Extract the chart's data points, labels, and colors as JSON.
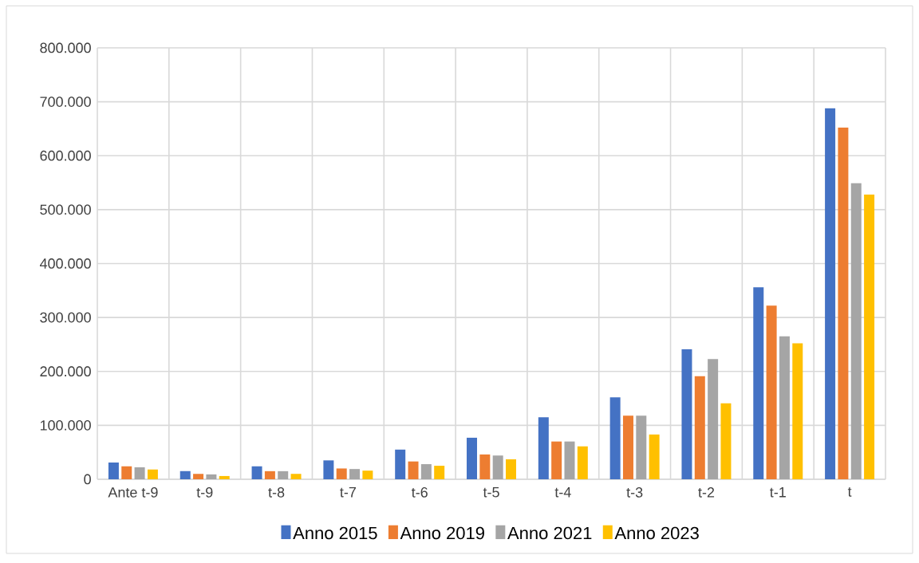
{
  "chart_data": {
    "type": "bar",
    "categories": [
      "Ante t-9",
      "t-9",
      "t-8",
      "t-7",
      "t-6",
      "t-5",
      "t-4",
      "t-3",
      "t-2",
      "t-1",
      "t"
    ],
    "series": [
      {
        "name": "Anno 2015",
        "color": "#4472c4",
        "values": [
          31000,
          15000,
          24000,
          35000,
          55000,
          77000,
          115000,
          152000,
          241000,
          356000,
          688000
        ]
      },
      {
        "name": "Anno 2019",
        "color": "#ed7d31",
        "values": [
          24000,
          10000,
          15000,
          20000,
          33000,
          46000,
          70000,
          118000,
          191000,
          322000,
          652000
        ]
      },
      {
        "name": "Anno 2021",
        "color": "#a5a5a5",
        "values": [
          22000,
          9000,
          15000,
          19000,
          28000,
          44000,
          70000,
          118000,
          223000,
          265000,
          549000
        ]
      },
      {
        "name": "Anno 2023",
        "color": "#ffc000",
        "values": [
          18000,
          6000,
          10000,
          16000,
          25000,
          37000,
          61000,
          83000,
          141000,
          252000,
          528000
        ]
      }
    ],
    "ylim": [
      0,
      800000
    ],
    "yticks": [
      0,
      {
        "value": 100000,
        "label": "100.000"
      },
      {
        "value": 200000,
        "label": "200.000"
      },
      {
        "value": 300000,
        "label": "300.000"
      },
      {
        "value": 400000,
        "label": "400.000"
      },
      {
        "value": 500000,
        "label": "500.000"
      },
      {
        "value": 600000,
        "label": "600.000"
      },
      {
        "value": 700000,
        "label": "700.000"
      },
      {
        "value": 800000,
        "label": "800.000"
      }
    ],
    "grid": true,
    "legend": "bottom"
  }
}
